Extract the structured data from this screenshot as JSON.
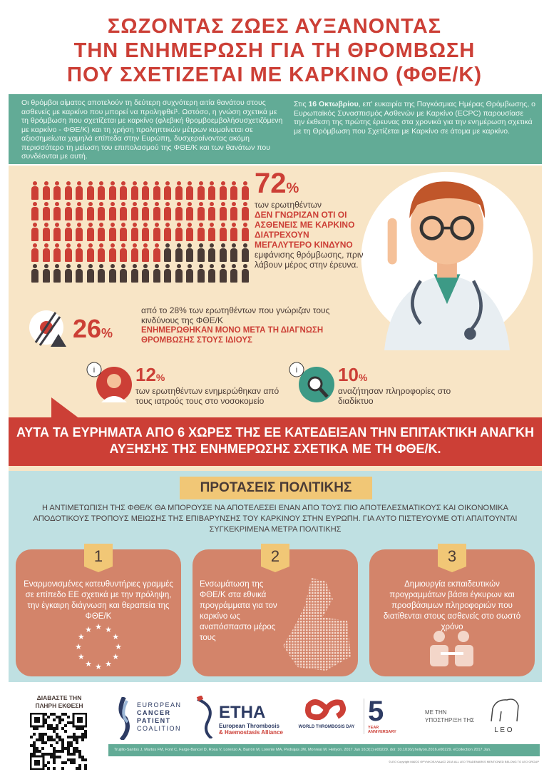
{
  "title": [
    "ΣΩΖΟΝΤΑΣ ΖΩΕΣ ΑΥΞΑΝΟΝΤΑΣ",
    "ΤΗΝ ΕΝΗΜΕΡΩΣΗ ΓΙΑ ΤΗ ΘΡΟΜΒΩΣΗ",
    "ΠΟΥ ΣΧΕΤΙΖΕΤΑΙ ΜΕ ΚΑΡΚΙΝΟ (ΦΘΕ/Κ)"
  ],
  "intro_left": "Οι θρόμβοι αίματος αποτελούν τη δεύτερη συχνότερη αιτία θανάτου στους ασθενείς με καρκίνο που μπορεί να προληφθεί¹. Ωστόσο, η γνώση σχετικά με τη θρόμβωση που σχετίζεται με καρκίνο (φλεβική θρομβοεμβολήσυσχετιζόμενη με καρκίνο - ΦΘΕ/Κ) και τη χρήση προληπτικών μέτρων κυμαίνεται σε αξιοσημείωτα χαμηλά επίπεδα στην Ευρώπη, δυσχεραίνοντας ακόμη περισσότερο τη μείωση του επιπολασμού της ΦΘΕ/Κ και των θανάτων που συνδέονται με αυτή.",
  "intro_right_pre": "Στις ",
  "intro_right_bold": "16 Οκτωβρίου",
  "intro_right_post": ", επ' ευκαιρία της Παγκόσμιας Ημέρας Θρόμβωσης, ο Ευρωπαϊκός Συνασπισμός Ασθενών με Καρκίνο (ECPC) παρουσίασε την έκθεση της πρώτης έρευνας στα χρονικά για την ενημέρωση σχετικά με τη Θρόμβωση που Σχετίζεται με Καρκίνο σε άτομα με καρκίνο.",
  "stat72": {
    "value": "72",
    "pct": "%",
    "pre": "των ερωτηθέντων",
    "highlight": "ΔΕΝ ΓΝΩΡΙΖΑΝ ΟΤΙ ΟΙ ΑΣΘΕΝΕΙΣ ΜΕ ΚΑΡΚΙΝΟ ΔΙΑΤΡΕΧΟΥΝ ΜΕΓΑΛΥΤΕΡΟ ΚΙΝΔΥΝΟ",
    "post": "εμφάνισης θρόμβωσης, πριν λάβουν μέρος στην έρευνα.",
    "fraction": 0.72
  },
  "stat26": {
    "value": "26",
    "pct": "%",
    "pre": "από το 28% των ερωτηθέντων που γνώριζαν τους κινδύνους της ΦΘΕ/Κ",
    "highlight": "ΕΝΗΜΕΡΩΘΗΚΑΝ ΜΟΝΟ ΜΕΤΑ ΤΗ ΔΙΑΓΝΩΣΗ ΘΡΟΜΒΩΣΗΣ ΣΤΟΥΣ ΙΔΙΟΥΣ"
  },
  "stat12": {
    "value": "12",
    "pct": "%",
    "text": "των ερωτηθέντων ενημερώθηκαν από τους ιατρούς τους στο νοσοκομείο"
  },
  "stat10": {
    "value": "10",
    "pct": "%",
    "text": "αναζήτησαν πληροφορίες στο διαδίκτυο"
  },
  "info_glyph": "i",
  "banner": "ΑΥΤΑ ΤΑ ΕΥΡΗΜΑΤΑ ΑΠΟ 6 ΧΩΡΕΣ ΤΗΣ ΕΕ ΚΑΤΕΔΕΙΞΑΝ ΤΗΝ ΕΠΙΤΑΚΤΙΚΗ ΑΝΑΓΚΗ ΑΥΞΗΣΗΣ ΤΗΣ ΕΝΗΜΕΡΩΣΗΣ ΣΧΕΤΙΚΑ ΜΕ ΤΗ ΦΘΕ/Κ.",
  "policy": {
    "title": "ΠΡΟΤΑΣΕΙΣ ΠΟΛΙΤΙΚΗΣ",
    "intro": "Η ΑΝΤΙΜΕΤΩΠΙΣΗ ΤΗΣ ΦΘΕ/Κ ΘΑ ΜΠΟΡΟΥΣΕ ΝΑ ΑΠΟΤΕΛΕΣΕΙ ΕΝΑΝ ΑΠΟ ΤΟΥΣ ΠΙΟ ΑΠΟΤΕΛΕΣΜΑΤΙΚΟΥΣ ΚΑΙ ΟΙΚΟΝΟΜΙΚΑ ΑΠΟΔΟΤΙΚΟΥΣ ΤΡΟΠΟΥΣ ΜΕΙΩΣΗΣ ΤΗΣ ΕΠΙΒΑΡΥΝΣΗΣ ΤΟΥ ΚΑΡΚΙΝΟΥ ΣΤΗΝ ΕΥΡΩΠΗ. ΓΙΑ ΑΥΤΟ ΠΙΣΤΕΥΟΥΜΕ ΟΤΙ ΑΠΑΙΤΟΥΝΤΑΙ ΣΥΓΚΕΚΡΙΜΕΝΑ ΜΕΤΡΑ ΠΟΛΙΤΙΚΗΣ",
    "cards": [
      {
        "num": "1",
        "text": "Εναρμονισμένες κατευθυντήριες γραμμές σε επίπεδο ΕΕ σχετικά με την πρόληψη, την έγκαιρη διάγνωση και θεραπεία της ΦΘΕ/Κ"
      },
      {
        "num": "2",
        "text": "Ενσωμάτωση της ΦΘΕ/Κ στα εθνικά προγράμματα για τον καρκίνο ως αναπόσπαστο μέρος τους"
      },
      {
        "num": "3",
        "text": "Δημιουργία εκπαιδευτικών προγραμμάτων βάσει έγκυρων και προσβάσιμων πληροφοριών που διατίθενται στους ασθενείς στο σωστό χρόνο"
      }
    ]
  },
  "footer": {
    "qr_label": "ΔΙΑΒΑΣΤΕ ΤΗΝ ΠΛΗΡΗ ΕΚΘΕΣΗ",
    "ecpc": [
      "EUROPEAN",
      "CANCER",
      "PATIENT",
      "COALITION"
    ],
    "etha": "ETHA",
    "etha_sub1": "European Thrombosis",
    "etha_sub2": "& Haemostasis Alliance",
    "wtd": "WORLD THROMBOSIS DAY",
    "anniv_num": "5",
    "anniv": "YEAR ANNIVERSARY",
    "support": "ΜΕ ΤΗΝ ΥΠΟΣΤΗΡΙΞΗ ΤΗΣ",
    "leo": "L E O",
    "reference": "Trujillo-Santos J, Martos FM, Font C, Farge-Bancel D, Rosa V, Lorenzo A, Barrón M, Lorente MA, Pedrajas JM, Monreal M. Heliyon. 2017 Jan 16;3(1):e00229. doi: 10.1016/j.heliyon.2016.e00229. eCollection 2017 Jan.",
    "copyright": "©LEO Copyright ΜΑΪΟΣ ΘΡΥΛΙΚΟΕΛΛΑΔΟΣ 2018 ALL LEO TRADEMARKS MENTIONED BELONG TO LEO GROUP"
  },
  "colors": {
    "red": "#cc3f36",
    "teal": "#62ab96",
    "beige": "#f8e5c6",
    "blue": "#bfe0e2",
    "salmon": "#d3846a",
    "yellow": "#f1c776"
  }
}
